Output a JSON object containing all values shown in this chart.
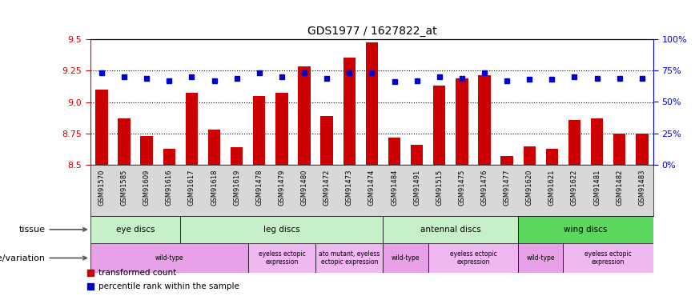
{
  "title": "GDS1977 / 1627822_at",
  "samples": [
    "GSM91570",
    "GSM91585",
    "GSM91609",
    "GSM91616",
    "GSM91617",
    "GSM91618",
    "GSM91619",
    "GSM91478",
    "GSM91479",
    "GSM91480",
    "GSM91472",
    "GSM91473",
    "GSM91474",
    "GSM91484",
    "GSM91491",
    "GSM91515",
    "GSM91475",
    "GSM91476",
    "GSM91477",
    "GSM91620",
    "GSM91621",
    "GSM91622",
    "GSM91481",
    "GSM91482",
    "GSM91483"
  ],
  "transformed_count": [
    9.1,
    8.87,
    8.73,
    8.63,
    9.07,
    8.78,
    8.64,
    9.05,
    9.07,
    9.28,
    8.89,
    9.35,
    9.47,
    8.72,
    8.66,
    9.13,
    9.19,
    9.21,
    8.57,
    8.65,
    8.63,
    8.86,
    8.87,
    8.75,
    8.75
  ],
  "percentile_rank": [
    73,
    70,
    69,
    67,
    70,
    67,
    69,
    73,
    70,
    73,
    69,
    73,
    73,
    66,
    67,
    70,
    69,
    73,
    67,
    68,
    68,
    70,
    69,
    69,
    69
  ],
  "ymin": 8.5,
  "ymax": 9.5,
  "yticks": [
    8.5,
    8.75,
    9.0,
    9.25,
    9.5
  ],
  "right_yticks": [
    0,
    25,
    50,
    75,
    100
  ],
  "tissue_groups": [
    {
      "label": "eye discs",
      "start": 0,
      "end": 4,
      "color": "#c8f0c8"
    },
    {
      "label": "leg discs",
      "start": 4,
      "end": 13,
      "color": "#c8f0c8"
    },
    {
      "label": "antennal discs",
      "start": 13,
      "end": 19,
      "color": "#c8f0c8"
    },
    {
      "label": "wing discs",
      "start": 19,
      "end": 25,
      "color": "#5cd65c"
    }
  ],
  "genotype_groups": [
    {
      "label": "wild-type",
      "start": 0,
      "end": 7,
      "color": "#e8a0e8"
    },
    {
      "label": "eyeless ectopic\nexpression",
      "start": 7,
      "end": 10,
      "color": "#f0b8f0"
    },
    {
      "label": "ato mutant, eyeless\nectopic expression",
      "start": 10,
      "end": 13,
      "color": "#f0b8f0"
    },
    {
      "label": "wild-type",
      "start": 13,
      "end": 15,
      "color": "#e8a0e8"
    },
    {
      "label": "eyeless ectopic\nexpression",
      "start": 15,
      "end": 19,
      "color": "#f0b8f0"
    },
    {
      "label": "wild-type",
      "start": 19,
      "end": 21,
      "color": "#e8a0e8"
    },
    {
      "label": "eyeless ectopic\nexpression",
      "start": 21,
      "end": 25,
      "color": "#f0b8f0"
    }
  ],
  "bar_color": "#cc0000",
  "dot_color": "#0000cc",
  "bar_width": 0.55,
  "left_axis_color": "#cc0000",
  "right_axis_color": "#0000cc",
  "tissue_label": "tissue",
  "geno_label": "genotype/variation",
  "legend_items": [
    {
      "color": "#cc0000",
      "label": "transformed count"
    },
    {
      "color": "#0000cc",
      "label": "percentile rank within the sample"
    }
  ]
}
